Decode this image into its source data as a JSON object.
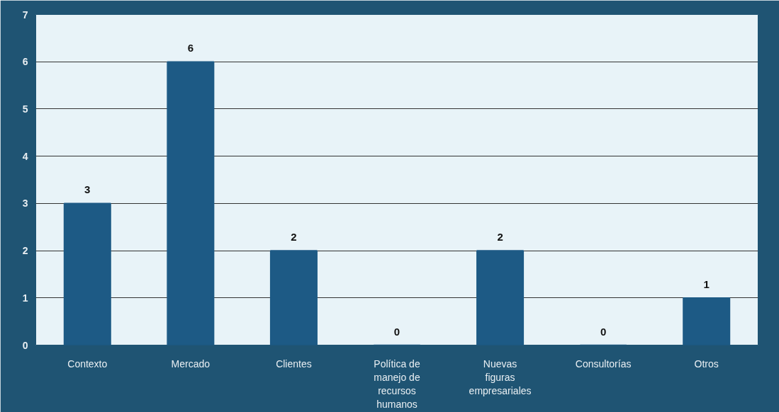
{
  "chart_data": {
    "type": "bar",
    "categories": [
      "Contexto",
      "Mercado",
      "Clientes",
      "Política de manejo de recursos humanos",
      "Nuevas figuras empresariales",
      "Consultorías",
      "Otros"
    ],
    "values": [
      3,
      6,
      2,
      0,
      2,
      0,
      1
    ],
    "color": "#1d5a85",
    "ylim": [
      0,
      7
    ],
    "yticks": [
      0,
      1,
      2,
      3,
      4,
      5,
      6,
      7
    ],
    "grid": "y",
    "data_labels": true
  }
}
